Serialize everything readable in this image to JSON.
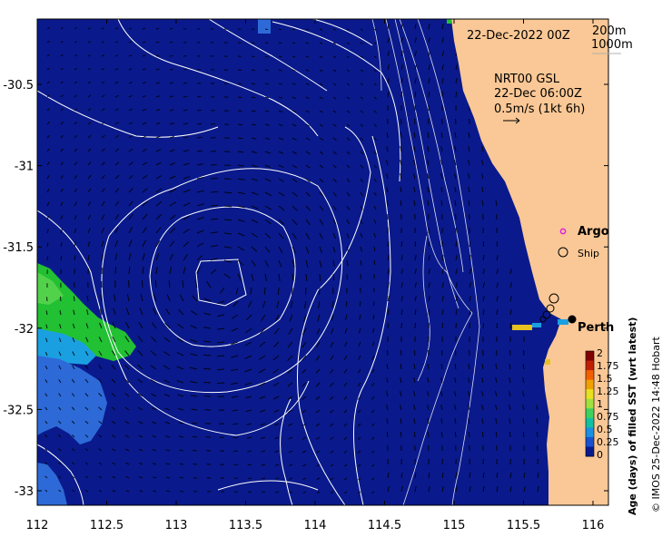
{
  "map": {
    "date_label": "22-Dec-2022 00Z",
    "contour_labels": [
      "200m",
      "1000m"
    ],
    "current_product": "NRT00 GSL",
    "current_time": "22-Dec 06:00Z",
    "current_scale": "0.5m/s (1kt 6h)",
    "legend": {
      "argo": "Argo",
      "ship": "Ship"
    },
    "city_label": "Perth",
    "colorbar": {
      "title": "Age (days) of filled SST (wrt latest)",
      "ticks": [
        "2",
        "1.75",
        "1.5",
        "1.25",
        "1",
        "0.75",
        "0.5",
        "0.25",
        "0"
      ]
    },
    "x_ticks": [
      "112",
      "112.5",
      "113",
      "113.5",
      "114",
      "114.5",
      "115",
      "115.5",
      "116"
    ],
    "y_ticks": [
      "-30.5",
      "-31",
      "-31.5",
      "-32",
      "-32.5",
      "-33"
    ],
    "credit": "© IMOS 25-Dec-2022 14:48 Hobart",
    "colors": {
      "ocean": "#0a1a8c",
      "land": "#fac896",
      "recent_green": "#22c033",
      "cyan": "#1aa0e0",
      "mid_blue": "#2d6ad8"
    }
  }
}
